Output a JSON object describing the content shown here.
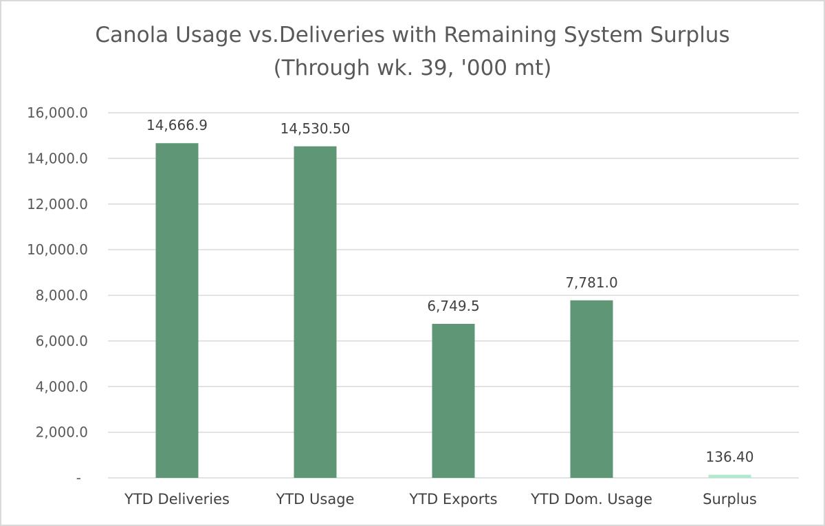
{
  "chart_data": {
    "type": "bar",
    "title": "Canola Usage vs.Deliveries with Remaining System Surplus",
    "subtitle": "(Through wk. 39, '000 mt)",
    "categories": [
      "YTD Deliveries",
      "YTD Usage",
      "YTD Exports",
      "YTD Dom. Usage",
      "Surplus"
    ],
    "values": [
      14666.9,
      14530.5,
      6749.5,
      7781.0,
      136.4
    ],
    "data_labels": [
      "14,666.9",
      "14,530.50",
      "6,749.5",
      "7,781.0",
      "136.40"
    ],
    "bar_colors": [
      "#5f9676",
      "#5f9676",
      "#5f9676",
      "#5f9676",
      "#aeeacb"
    ],
    "ylim": [
      0,
      16000
    ],
    "yticks": [
      0,
      2000,
      4000,
      6000,
      8000,
      10000,
      12000,
      14000,
      16000
    ],
    "ytick_labels": [
      "-",
      "2,000.0",
      "4,000.0",
      "6,000.0",
      "8,000.0",
      "10,000.0",
      "12,000.0",
      "14,000.0",
      "16,000.0"
    ],
    "xlabel": "",
    "ylabel": "",
    "grid": true,
    "gridline_color": "#d9d9d9"
  }
}
